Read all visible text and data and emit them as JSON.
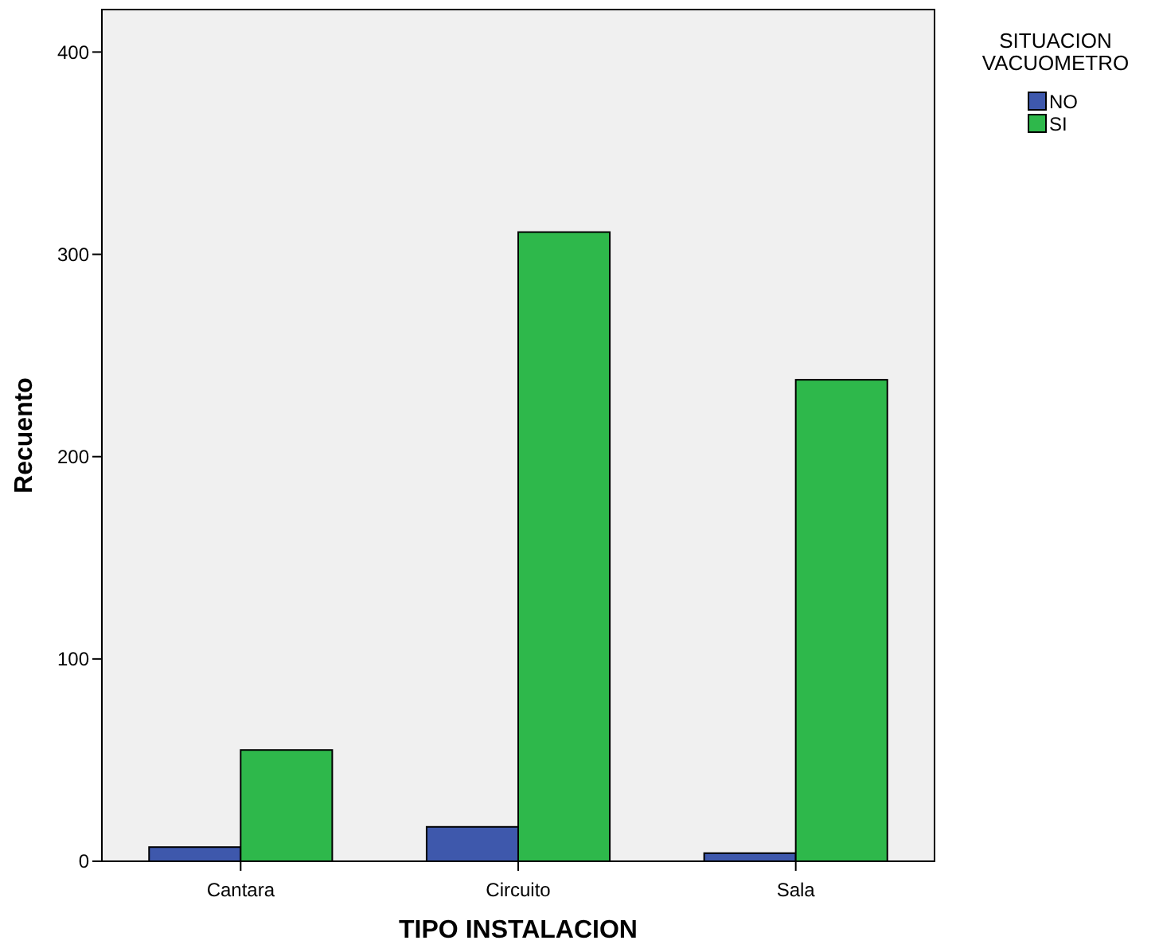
{
  "chart_data": {
    "type": "bar",
    "xlabel": "TIPO INSTALACION",
    "ylabel": "Recuento",
    "legend_title": "SITUACION VACUOMETRO",
    "categories": [
      "Cantara",
      "Circuito",
      "Sala"
    ],
    "series": [
      {
        "name": "NO",
        "color": "#3e58ac",
        "values": [
          7,
          17,
          4
        ]
      },
      {
        "name": "SI",
        "color": "#2eb84b",
        "values": [
          55,
          311,
          238
        ]
      }
    ],
    "ylim": [
      0,
      421
    ],
    "yticks": [
      0,
      100,
      200,
      300,
      400
    ],
    "grid": false,
    "legend": "top right"
  }
}
